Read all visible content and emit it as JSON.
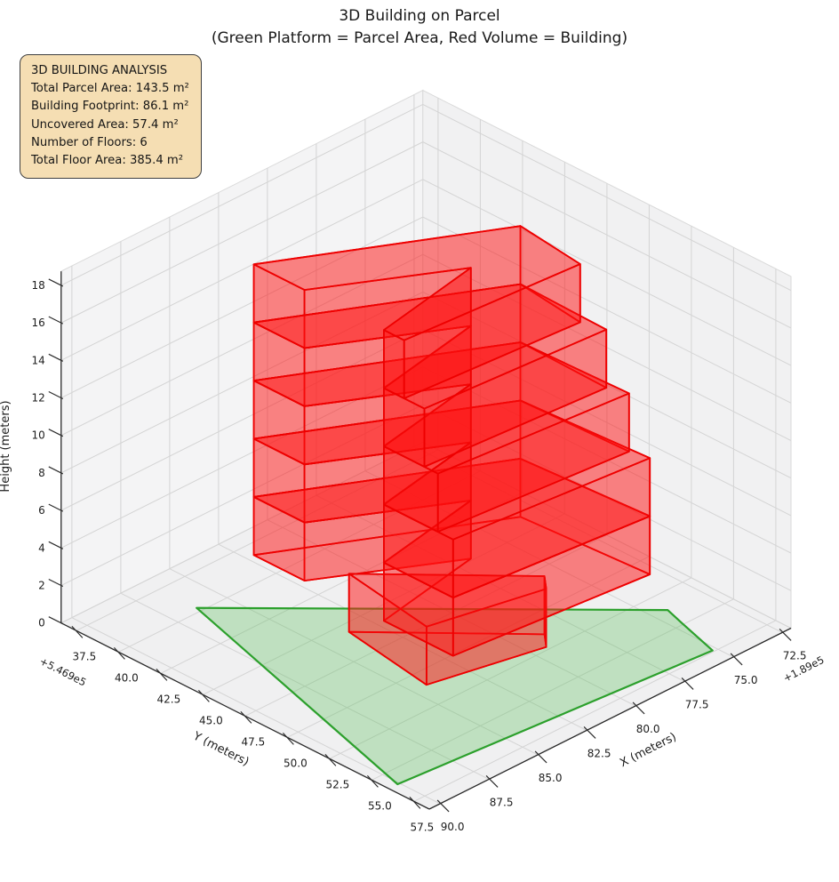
{
  "title": {
    "line1": "3D Building on Parcel",
    "line2": "(Green Platform = Parcel Area, Red Volume = Building)"
  },
  "info_box": {
    "lines": [
      "3D BUILDING ANALYSIS",
      "Total Parcel Area: 143.5 m²",
      "Building Footprint: 86.1 m²",
      "Uncovered Area: 57.4 m²",
      "Number of Floors: 6",
      "Total Floor Area: 385.4 m²"
    ]
  },
  "chart_data": {
    "type": "3d-building-plot",
    "stats": {
      "total_parcel_area_m2": 143.5,
      "building_footprint_m2": 86.1,
      "uncovered_area_m2": 57.4,
      "number_of_floors": 6,
      "total_floor_area_m2": 385.4
    },
    "axes": {
      "x": {
        "label": "X (meters)",
        "offset_text": "+1.89e5",
        "tick_values": [
          72.5,
          75.0,
          77.5,
          80.0,
          82.5,
          85.0,
          87.5,
          90.0
        ],
        "tick_labels": [
          "72.5",
          "75.0",
          "77.5",
          "80.0",
          "82.5",
          "85.0",
          "87.5",
          "90.0"
        ],
        "lim": [
          72.05,
          90.55
        ]
      },
      "y": {
        "label": "Y (meters)",
        "offset_text": "+5.469e5",
        "tick_values": [
          37.5,
          40.0,
          42.5,
          45.0,
          47.5,
          50.0,
          52.5,
          55.0,
          57.5
        ],
        "tick_labels": [
          "37.5",
          "40.0",
          "42.5",
          "45.0",
          "47.5",
          "50.0",
          "52.5",
          "55.0",
          "57.5"
        ],
        "lim": [
          36.6,
          58.4
        ]
      },
      "z": {
        "label": "Height (meters)",
        "tick_values": [
          0,
          2,
          4,
          6,
          8,
          10,
          12,
          14,
          16,
          18
        ],
        "tick_labels": [
          "0",
          "2",
          "4",
          "6",
          "8",
          "10",
          "12",
          "14",
          "16",
          "18"
        ],
        "lim": [
          0,
          18.75
        ]
      }
    },
    "parcel": {
      "polygon_xy": [
        [
          86.3,
          39.7
        ],
        [
          74.3,
          53.7
        ],
        [
          74.6,
          54.9
        ],
        [
          75.2,
          57.4
        ],
        [
          90.1,
          56.0
        ]
      ],
      "z": 0,
      "fill": "rgba(80,190,80,0.30)",
      "edge": "#2ca02c"
    },
    "building": {
      "fill": "rgba(255,20,20,0.30)",
      "edge": "#ee0000",
      "floors": [
        {
          "z0": 0.0,
          "z1": 3.1,
          "footprint": [
            [
              83.6,
              45.6
            ],
            [
              78.7,
              51.5
            ],
            [
              79.3,
              52.3
            ],
            [
              84.3,
              51.0
            ]
          ]
        },
        {
          "z0": 3.1,
          "z1": 6.2,
          "footprint": [
            [
              85.1,
              41.7
            ],
            [
              76.3,
              47.3
            ],
            [
              75.9,
              54.5
            ],
            [
              85.1,
              53.5
            ],
            [
              85.1,
              49.4
            ],
            [
              79.7,
              48.3
            ],
            [
              85.1,
              44.7
            ]
          ]
        },
        {
          "z0": 6.2,
          "z1": 9.3,
          "footprint": [
            [
              85.1,
              41.7
            ],
            [
              76.3,
              47.3
            ],
            [
              75.9,
              54.5
            ],
            [
              85.1,
              53.5
            ],
            [
              85.1,
              49.4
            ],
            [
              79.7,
              48.3
            ],
            [
              85.1,
              44.7
            ]
          ]
        },
        {
          "z0": 9.3,
          "z1": 12.4,
          "footprint": [
            [
              85.1,
              41.7
            ],
            [
              76.3,
              47.3
            ],
            [
              76.1,
              53.5
            ],
            [
              85.1,
              52.6
            ],
            [
              85.1,
              49.4
            ],
            [
              79.7,
              48.3
            ],
            [
              85.1,
              44.7
            ]
          ]
        },
        {
          "z0": 12.4,
          "z1": 15.5,
          "footprint": [
            [
              85.1,
              41.7
            ],
            [
              76.3,
              47.3
            ],
            [
              76.4,
              52.5
            ],
            [
              85.1,
              51.8
            ],
            [
              85.1,
              49.4
            ],
            [
              79.7,
              48.3
            ],
            [
              85.1,
              44.7
            ]
          ]
        },
        {
          "z0": 15.5,
          "z1": 18.6,
          "footprint": [
            [
              85.1,
              41.7
            ],
            [
              76.3,
              47.3
            ],
            [
              76.7,
              51.3
            ],
            [
              85.1,
              50.6
            ],
            [
              85.1,
              49.4
            ],
            [
              79.7,
              48.3
            ],
            [
              85.1,
              44.7
            ]
          ]
        }
      ]
    },
    "style": {
      "pane_floor": "#f0f0f1",
      "pane_left": "#f4f4f5",
      "pane_right": "#f1f1f2",
      "grid_color": "#d4d4d4",
      "pane_edge": "#d9d9d9",
      "spine_color": "#2b2b2b",
      "tick_label_color": "#1c1c1c"
    }
  }
}
